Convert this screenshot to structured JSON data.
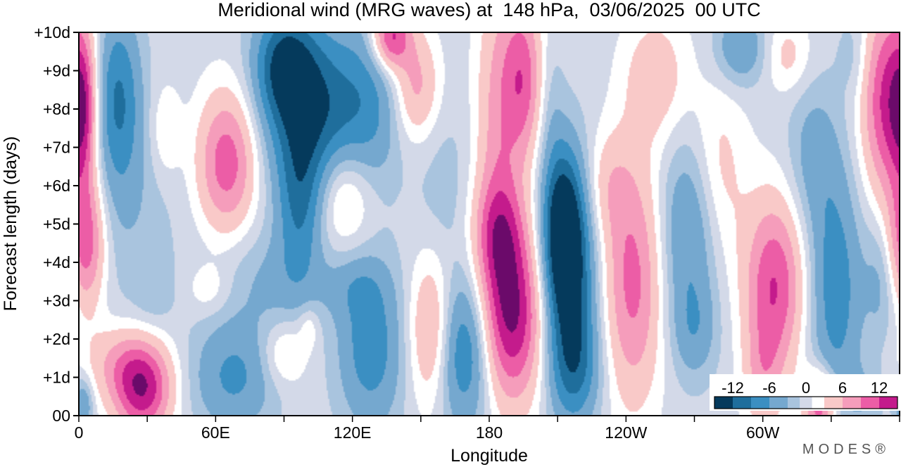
{
  "chart_data": {
    "type": "heatmap",
    "title": "Meridional wind (MRG waves) at  148 hPa,  03/06/2025  00 UTC",
    "xlabel": "Longitude",
    "ylabel": "Forecast length (days)",
    "x_ticks": [
      "0",
      "60E",
      "120E",
      "180",
      "120W",
      "60W"
    ],
    "x_tick_values": [
      0,
      60,
      120,
      180,
      240,
      300
    ],
    "x_range": [
      0,
      360
    ],
    "y_ticks": [
      "00",
      "+1d",
      "+2d",
      "+3d",
      "+4d",
      "+5d",
      "+6d",
      "+7d",
      "+8d",
      "+9d",
      "+10d"
    ],
    "y_tick_values": [
      0,
      1,
      2,
      3,
      4,
      5,
      6,
      7,
      8,
      9,
      10
    ],
    "y_range": [
      0,
      10
    ],
    "colorbar": {
      "labels": [
        "-12",
        "-6",
        "0",
        "6",
        "12"
      ],
      "label_values": [
        -12,
        -6,
        0,
        6,
        12
      ],
      "range": [
        -15,
        15
      ],
      "levels": [
        -15,
        -12,
        -9,
        -6,
        -3,
        -1,
        1,
        3,
        6,
        9,
        12,
        15
      ],
      "colors": [
        "#053a5c",
        "#1f6e9c",
        "#3b8fc2",
        "#75a8cf",
        "#a9c4de",
        "#d3d9e8",
        "#ffffff",
        "#f9c9c8",
        "#f59dbb",
        "#ec5da6",
        "#c41b8c",
        "#6b0a6a"
      ]
    },
    "features": [
      {
        "lon": 2,
        "day": 8.0,
        "value": 9,
        "sx": 4,
        "sd": 1.4
      },
      {
        "lon": 3,
        "day": 4.5,
        "value": 11,
        "sx": 6,
        "sd": 1.2
      },
      {
        "lon": 2,
        "day": 0.3,
        "value": -6,
        "sx": 3,
        "sd": 0.5
      },
      {
        "lon": 17,
        "day": 8.3,
        "value": -9,
        "sx": 7,
        "sd": 1.6
      },
      {
        "lon": 28,
        "day": 0.6,
        "value": 13,
        "sx": 9,
        "sd": 0.8
      },
      {
        "lon": 20,
        "day": 1.4,
        "value": 6,
        "sx": 12,
        "sd": 0.7
      },
      {
        "lon": 23,
        "day": 5.5,
        "value": -2.5,
        "sx": 14,
        "sd": 2.0
      },
      {
        "lon": 38,
        "day": 7.4,
        "value": 3.5,
        "sx": 5,
        "sd": 0.9
      },
      {
        "lon": 33,
        "day": 3.2,
        "value": -2,
        "sx": 6,
        "sd": 0.6
      },
      {
        "lon": 57,
        "day": 3.3,
        "value": 3,
        "sx": 7,
        "sd": 0.5
      },
      {
        "lon": 65,
        "day": 6.6,
        "value": 11,
        "sx": 9,
        "sd": 1.3
      },
      {
        "lon": 68,
        "day": 1.0,
        "value": -6.5,
        "sx": 13,
        "sd": 1.0
      },
      {
        "lon": 73,
        "day": 3.5,
        "value": -2,
        "sx": 14,
        "sd": 1.2
      },
      {
        "lon": 90,
        "day": 9.2,
        "value": -10,
        "sx": 9,
        "sd": 1.0
      },
      {
        "lon": 102,
        "day": 8.0,
        "value": -12,
        "sx": 14,
        "sd": 1.5
      },
      {
        "lon": 97,
        "day": 5.5,
        "value": -8,
        "sx": 7,
        "sd": 1.4
      },
      {
        "lon": 92,
        "day": 3.5,
        "value": -2.5,
        "sx": 12,
        "sd": 0.8
      },
      {
        "lon": 90,
        "day": 1.6,
        "value": 4.5,
        "sx": 7,
        "sd": 0.6
      },
      {
        "lon": 101,
        "day": 2.3,
        "value": 3,
        "sx": 3,
        "sd": 0.4
      },
      {
        "lon": 117,
        "day": 5.8,
        "value": 6,
        "sx": 9,
        "sd": 1.0
      },
      {
        "lon": 128,
        "day": 1.8,
        "value": -8,
        "sx": 10,
        "sd": 1.5
      },
      {
        "lon": 120,
        "day": 3.4,
        "value": -3,
        "sx": 10,
        "sd": 0.6
      },
      {
        "lon": 127,
        "day": 8.0,
        "value": -6,
        "sx": 10,
        "sd": 1.6
      },
      {
        "lon": 137,
        "day": 9.9,
        "value": 13,
        "sx": 6,
        "sd": 0.6
      },
      {
        "lon": 148,
        "day": 8.6,
        "value": 7,
        "sx": 7,
        "sd": 1.0
      },
      {
        "lon": 160,
        "day": 6.0,
        "value": -2,
        "sx": 9,
        "sd": 1.6
      },
      {
        "lon": 155,
        "day": 2.2,
        "value": 8,
        "sx": 7,
        "sd": 1.4
      },
      {
        "lon": 169,
        "day": 1.7,
        "value": -10,
        "sx": 9,
        "sd": 1.4
      },
      {
        "lon": 184,
        "day": 7.4,
        "value": 7,
        "sx": 7,
        "sd": 3.0
      },
      {
        "lon": 190,
        "day": 2.6,
        "value": 15,
        "sx": 10,
        "sd": 1.6
      },
      {
        "lon": 184,
        "day": 4.8,
        "value": 7,
        "sx": 8,
        "sd": 1.0
      },
      {
        "lon": 195,
        "day": 8.8,
        "value": 10,
        "sx": 6,
        "sd": 1.5
      },
      {
        "lon": 215,
        "day": 3.5,
        "value": -13,
        "sx": 8,
        "sd": 2.0
      },
      {
        "lon": 212,
        "day": 5.0,
        "value": -11,
        "sx": 6,
        "sd": 1.4
      },
      {
        "lon": 218,
        "day": 1.2,
        "value": -6,
        "sx": 8,
        "sd": 1.0
      },
      {
        "lon": 207,
        "day": 8.0,
        "value": -2,
        "sx": 4,
        "sd": 1.4
      },
      {
        "lon": 243,
        "day": 3.5,
        "value": 10,
        "sx": 9,
        "sd": 2.2
      },
      {
        "lon": 232,
        "day": 6.0,
        "value": 4,
        "sx": 7,
        "sd": 1.0
      },
      {
        "lon": 253,
        "day": 8.8,
        "value": 5,
        "sx": 10,
        "sd": 1.2
      },
      {
        "lon": 268,
        "day": 4.8,
        "value": -7,
        "sx": 9,
        "sd": 1.8
      },
      {
        "lon": 270,
        "day": 2.2,
        "value": -4,
        "sx": 7,
        "sd": 0.9
      },
      {
        "lon": 280,
        "day": 6.3,
        "value": 4.5,
        "sx": 9,
        "sd": 1.8
      },
      {
        "lon": 290,
        "day": 9.6,
        "value": -6,
        "sx": 8,
        "sd": 0.7
      },
      {
        "lon": 305,
        "day": 3.4,
        "value": 12,
        "sx": 9,
        "sd": 1.6
      },
      {
        "lon": 300,
        "day": 1.0,
        "value": 5,
        "sx": 6,
        "sd": 1.0
      },
      {
        "lon": 311,
        "day": 9.4,
        "value": 4,
        "sx": 7,
        "sd": 0.7
      },
      {
        "lon": 332,
        "day": 3.3,
        "value": -8,
        "sx": 8,
        "sd": 2.2
      },
      {
        "lon": 322,
        "day": 6.8,
        "value": -4,
        "sx": 8,
        "sd": 1.4
      },
      {
        "lon": 325,
        "day": 0.3,
        "value": 12,
        "sx": 5,
        "sd": 0.6
      },
      {
        "lon": 355,
        "day": 8.2,
        "value": 13,
        "sx": 8,
        "sd": 1.8
      },
      {
        "lon": 352,
        "day": 3.6,
        "value": -4,
        "sx": 5,
        "sd": 1.2
      },
      {
        "lon": 345,
        "day": 0.5,
        "value": -2.5,
        "sx": 6,
        "sd": 0.6
      },
      {
        "lon": 340,
        "day": 9.4,
        "value": -2.5,
        "sx": 5,
        "sd": 0.8
      }
    ]
  },
  "brand": "MODES®"
}
